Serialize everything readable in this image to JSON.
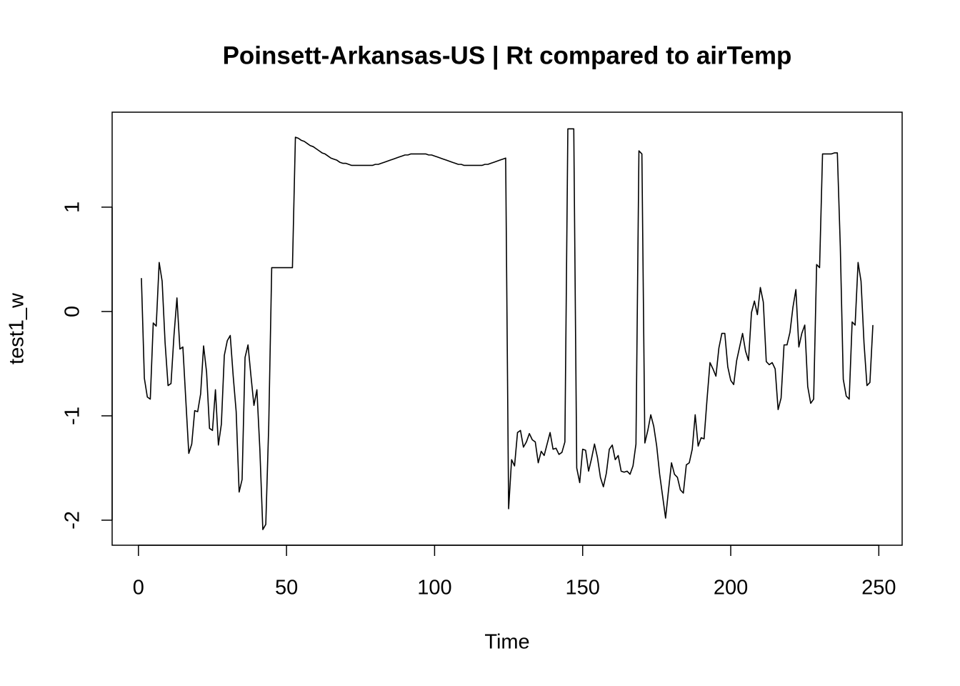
{
  "chart_data": {
    "type": "line",
    "title": "Poinsett-Arkansas-US | Rt compared to airTemp",
    "x_label": "Time",
    "y_label": "test1_w",
    "color": "#000000",
    "x": [
      1,
      2,
      3,
      4,
      5,
      6,
      7,
      8,
      9,
      10,
      11,
      12,
      13,
      14,
      15,
      16,
      17,
      18,
      19,
      20,
      21,
      22,
      23,
      24,
      25,
      26,
      27,
      28,
      29,
      30,
      31,
      32,
      33,
      34,
      35,
      36,
      37,
      38,
      39,
      40,
      41,
      42,
      43,
      44,
      45,
      46,
      47,
      48,
      49,
      50,
      51,
      52,
      53,
      54,
      55,
      56,
      57,
      58,
      59,
      60,
      61,
      62,
      63,
      64,
      65,
      66,
      67,
      68,
      69,
      70,
      71,
      72,
      73,
      74,
      75,
      76,
      77,
      78,
      79,
      80,
      81,
      82,
      83,
      84,
      85,
      86,
      87,
      88,
      89,
      90,
      91,
      92,
      93,
      94,
      95,
      96,
      97,
      98,
      99,
      100,
      101,
      102,
      103,
      104,
      105,
      106,
      107,
      108,
      109,
      110,
      111,
      112,
      113,
      114,
      115,
      116,
      117,
      118,
      119,
      120,
      121,
      122,
      123,
      124,
      125,
      126,
      127,
      128,
      129,
      130,
      131,
      132,
      133,
      134,
      135,
      136,
      137,
      138,
      139,
      140,
      141,
      142,
      143,
      144,
      145,
      146,
      147,
      148,
      149,
      150,
      151,
      152,
      153,
      154,
      155,
      156,
      157,
      158,
      159,
      160,
      161,
      162,
      163,
      164,
      165,
      166,
      167,
      168,
      169,
      170,
      171,
      172,
      173,
      174,
      175,
      176,
      177,
      178,
      179,
      180,
      181,
      182,
      183,
      184,
      185,
      186,
      187,
      188,
      189,
      190,
      191,
      192,
      193,
      194,
      195,
      196,
      197,
      198,
      199,
      200,
      201,
      202,
      203,
      204,
      205,
      206,
      207,
      208,
      209,
      210,
      211,
      212,
      213,
      214,
      215,
      216,
      217,
      218,
      219,
      220,
      221,
      222,
      223,
      224,
      225,
      226,
      227,
      228,
      229,
      230,
      231,
      232,
      233,
      234,
      235,
      236,
      237,
      238,
      239,
      240,
      241,
      242,
      243,
      244,
      245,
      246,
      247,
      248
    ],
    "values": [
      0.32,
      -0.64,
      -0.82,
      -0.84,
      -0.11,
      -0.14,
      0.47,
      0.29,
      -0.3,
      -0.71,
      -0.69,
      -0.23,
      0.13,
      -0.36,
      -0.34,
      -0.85,
      -1.36,
      -1.27,
      -0.95,
      -0.96,
      -0.79,
      -0.33,
      -0.58,
      -1.12,
      -1.14,
      -0.75,
      -1.28,
      -1.08,
      -0.42,
      -0.28,
      -0.23,
      -0.62,
      -0.96,
      -1.73,
      -1.61,
      -0.44,
      -0.32,
      -0.62,
      -0.9,
      -0.75,
      -1.32,
      -2.09,
      -2.04,
      -1.09,
      0.42,
      0.42,
      0.42,
      0.42,
      0.42,
      0.42,
      0.42,
      0.42,
      1.67,
      1.66,
      1.64,
      1.63,
      1.61,
      1.59,
      1.58,
      1.56,
      1.54,
      1.52,
      1.51,
      1.49,
      1.47,
      1.46,
      1.45,
      1.43,
      1.42,
      1.42,
      1.41,
      1.4,
      1.4,
      1.4,
      1.4,
      1.4,
      1.4,
      1.4,
      1.4,
      1.41,
      1.41,
      1.42,
      1.43,
      1.44,
      1.45,
      1.46,
      1.47,
      1.48,
      1.49,
      1.5,
      1.5,
      1.51,
      1.51,
      1.51,
      1.51,
      1.51,
      1.51,
      1.5,
      1.5,
      1.49,
      1.48,
      1.47,
      1.46,
      1.45,
      1.44,
      1.43,
      1.42,
      1.41,
      1.41,
      1.4,
      1.4,
      1.4,
      1.4,
      1.4,
      1.4,
      1.4,
      1.41,
      1.41,
      1.42,
      1.43,
      1.44,
      1.45,
      1.46,
      1.47,
      -1.89,
      -1.42,
      -1.48,
      -1.16,
      -1.14,
      -1.3,
      -1.25,
      -1.17,
      -1.23,
      -1.25,
      -1.45,
      -1.34,
      -1.38,
      -1.27,
      -1.16,
      -1.32,
      -1.31,
      -1.37,
      -1.35,
      -1.25,
      1.75,
      1.75,
      1.75,
      -1.5,
      -1.64,
      -1.32,
      -1.33,
      -1.53,
      -1.41,
      -1.27,
      -1.4,
      -1.59,
      -1.68,
      -1.55,
      -1.32,
      -1.28,
      -1.42,
      -1.38,
      -1.53,
      -1.54,
      -1.53,
      -1.56,
      -1.48,
      -1.27,
      1.54,
      1.51,
      -1.26,
      -1.14,
      -0.99,
      -1.1,
      -1.29,
      -1.56,
      -1.77,
      -1.98,
      -1.71,
      -1.45,
      -1.56,
      -1.59,
      -1.71,
      -1.74,
      -1.47,
      -1.45,
      -1.32,
      -0.99,
      -1.29,
      -1.21,
      -1.22,
      -0.84,
      -0.49,
      -0.55,
      -0.62,
      -0.35,
      -0.21,
      -0.21,
      -0.53,
      -0.66,
      -0.7,
      -0.47,
      -0.34,
      -0.21,
      -0.38,
      -0.47,
      -0.01,
      0.1,
      -0.03,
      0.23,
      0.09,
      -0.48,
      -0.51,
      -0.49,
      -0.55,
      -0.94,
      -0.83,
      -0.32,
      -0.32,
      -0.2,
      0.04,
      0.21,
      -0.34,
      -0.21,
      -0.13,
      -0.72,
      -0.88,
      -0.84,
      0.45,
      0.42,
      1.51,
      1.51,
      1.51,
      1.51,
      1.52,
      1.52,
      0.62,
      -0.65,
      -0.81,
      -0.84,
      -0.1,
      -0.13,
      0.47,
      0.29,
      -0.3,
      -0.71,
      -0.68,
      -0.13
    ],
    "xlim": [
      -8.88,
      257.88
    ],
    "ylim": [
      -2.24,
      1.91
    ],
    "xticks": [
      0,
      50,
      100,
      150,
      200,
      250
    ],
    "yticks": [
      -2,
      -1,
      0,
      1
    ]
  }
}
